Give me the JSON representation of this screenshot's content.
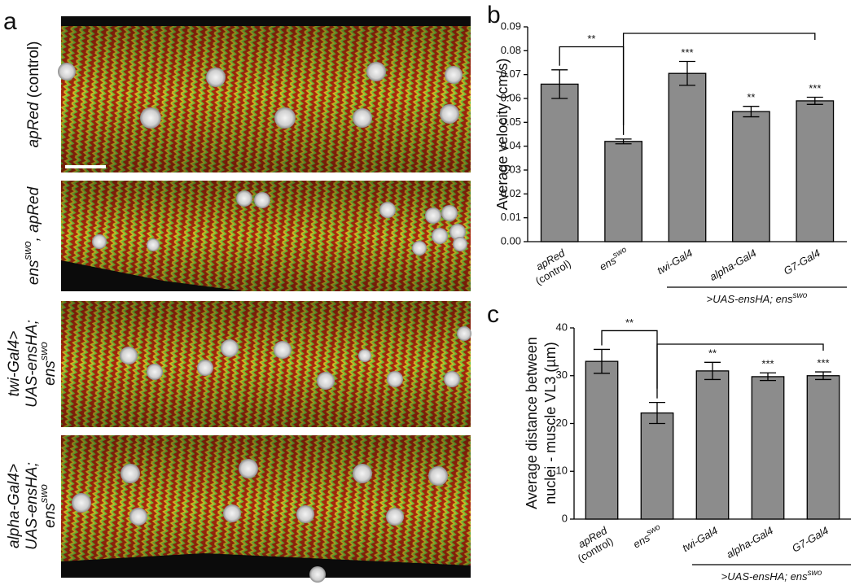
{
  "panel_a": {
    "panel": "a",
    "images": [
      {
        "label": [
          [
            "apRed",
            "(control)"
          ]
        ]
      },
      {
        "label": [
          [
            "ens",
            "swo",
            ", apRed"
          ]
        ]
      },
      {
        "label": [
          [
            "twi-Gal4>"
          ],
          [
            "UAS-ensHA;"
          ],
          [
            "ens",
            "swo"
          ]
        ]
      },
      {
        "label": [
          [
            "alpha-Gal4>"
          ],
          [
            "UAS-ensHA;"
          ],
          [
            "ens",
            "swo"
          ]
        ]
      }
    ]
  },
  "chart_data": [
    {
      "type": "bar",
      "panel": "b",
      "ylabel": "Average velocity (cm/s)",
      "categories": [
        [
          "apRed",
          "(control)"
        ],
        [
          "ens",
          "swo"
        ],
        [
          "twi-Gal4"
        ],
        [
          "alpha-Gal4"
        ],
        [
          "G7-Gal4"
        ]
      ],
      "values": [
        0.066,
        0.042,
        0.0705,
        0.0545,
        0.059
      ],
      "errors": [
        0.006,
        0.001,
        0.005,
        0.0022,
        0.0015
      ],
      "significance": [
        null,
        null,
        "***",
        "**",
        "***"
      ],
      "bracket_label": "**",
      "group_label": [
        ">UAS-ensHA; ens",
        "swo"
      ],
      "color": "#8c8c8c",
      "ylim": [
        0,
        0.09
      ],
      "yticks": [
        {
          "value": 0,
          "label": "0.00"
        },
        0.01,
        0.02,
        0.03,
        0.04,
        0.05,
        0.06,
        0.07,
        0.08,
        0.09
      ]
    },
    {
      "type": "bar",
      "panel": "c",
      "ylabel": [
        "Average distance between",
        "nuclei - muscle VL3 (µm)"
      ],
      "categories": [
        [
          "apRed",
          "(control)"
        ],
        [
          "ens",
          "swo"
        ],
        [
          "twi-Gal4"
        ],
        [
          "alpha-Gal4"
        ],
        [
          "G7-Gal4"
        ]
      ],
      "values": [
        33,
        22.2,
        31,
        29.8,
        30
      ],
      "errors": [
        2.5,
        2.2,
        1.8,
        0.8,
        0.8
      ],
      "significance": [
        null,
        null,
        "**",
        "***",
        "***"
      ],
      "bracket_label": "**",
      "group_label": [
        ">UAS-ensHA; ens",
        "swo"
      ],
      "color": "#8c8c8c",
      "ylim": [
        0,
        40
      ],
      "yticks": [
        0,
        10,
        20,
        30,
        40
      ]
    }
  ]
}
